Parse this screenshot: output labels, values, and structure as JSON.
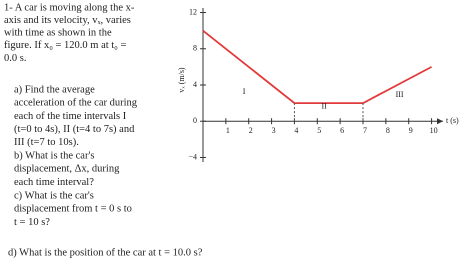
{
  "problem": {
    "intro": [
      "1- A car is moving along the x-",
      "axis and its velocity, vₓ, varies",
      "with time as shown in the",
      "figure. If x₀ = 120.0 m at t₀ =",
      "0.0 s."
    ],
    "questions": [
      [
        "a)  Find the average",
        "acceleration of the car during",
        "each of the time intervals I",
        "(t=0 to 4s), II (t=4 to 7s) and",
        "III (t=7 to 10s)."
      ],
      [
        "b)    What is the car's",
        "displacement, Δx, during",
        "each time interval?"
      ],
      [
        "c) What is the car's",
        "displacement from t = 0 s to",
        "t = 10 s?"
      ],
      [
        "d)   What is the position of the car at t = 10.0 s?"
      ]
    ]
  },
  "chart_data": {
    "type": "line",
    "y_label": "vₓ (m/s)",
    "x_label": "t (s)",
    "x": [
      0,
      4,
      7,
      10
    ],
    "values": [
      10,
      2,
      2,
      6
    ],
    "color": "#e23a3a",
    "xlim": [
      0,
      10.5
    ],
    "ylim": [
      -4.5,
      12.5
    ],
    "xticks": [
      1,
      2,
      3,
      4,
      5,
      6,
      7,
      8,
      9,
      10
    ],
    "yticks": [
      12,
      8,
      4,
      0,
      {
        "value": -4,
        "label": "−4"
      }
    ],
    "annotations": [
      {
        "text": "I",
        "x": 1.8,
        "y": 3.2
      },
      {
        "text": "II",
        "x": 5.3,
        "y": 1.6
      },
      {
        "text": "III",
        "x": 8.6,
        "y": 2.9
      }
    ],
    "grid": false
  }
}
